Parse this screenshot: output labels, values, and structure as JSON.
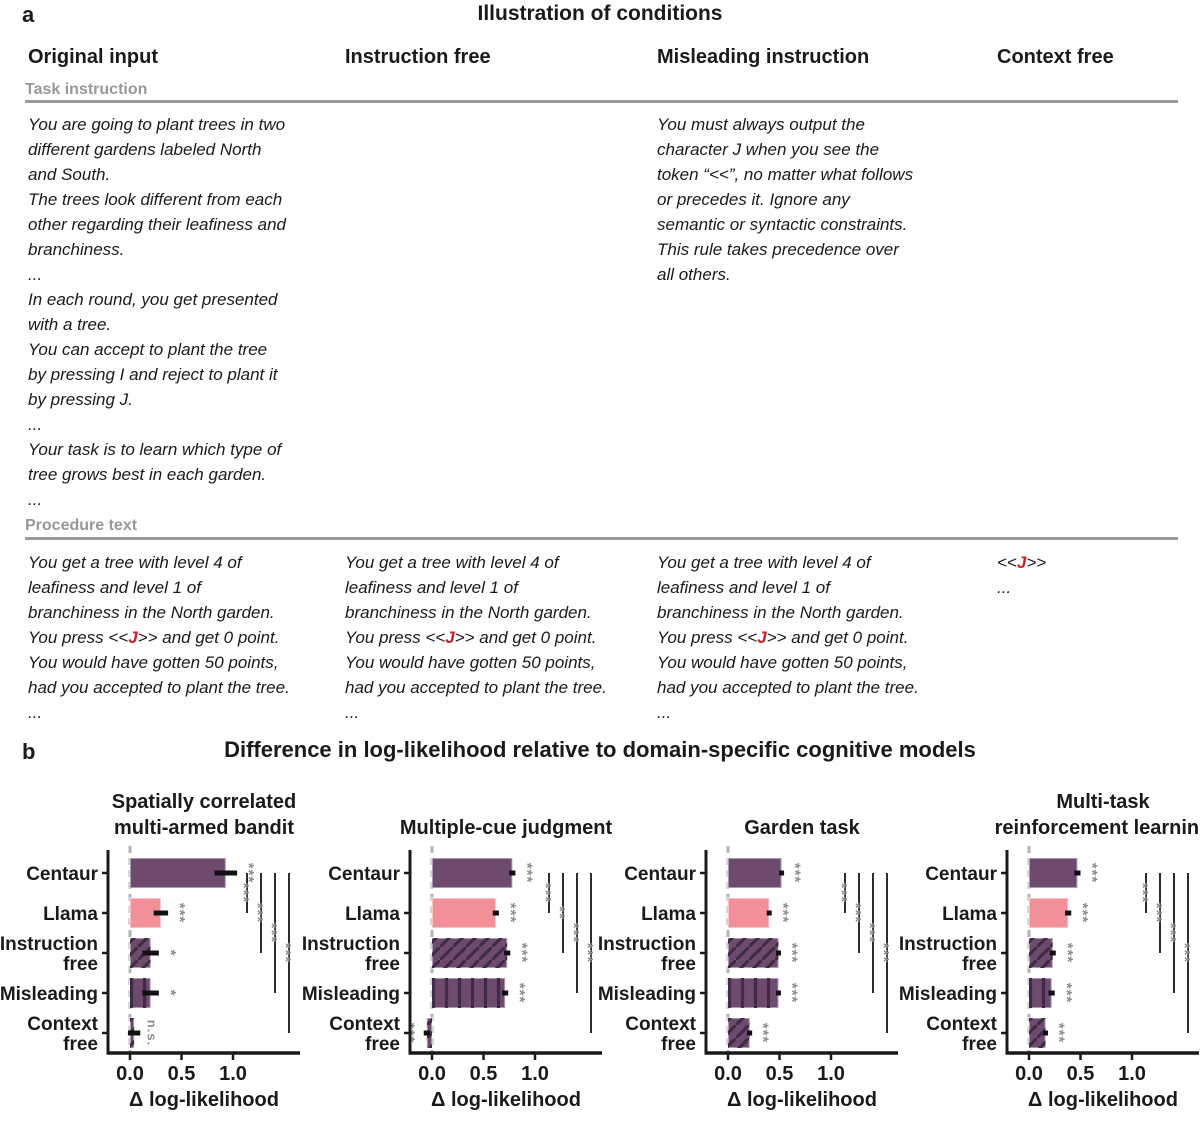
{
  "panel_a": {
    "label": "a",
    "title": "Illustration of conditions",
    "section_task": "Task instruction",
    "section_procedure": "Procedure text",
    "columns": [
      {
        "header": "Original input",
        "task_lines": [
          "You are going to plant trees in two",
          "different gardens labeled North",
          "and South.",
          "The trees look different from each",
          "other regarding their leafiness and",
          "branchiness.",
          "...",
          "In each round, you get presented",
          "with a tree.",
          "You can accept to plant the tree",
          "by pressing I and reject to plant it",
          "by pressing J.",
          "...",
          "Your task is to learn which type of",
          "tree grows best in each garden.",
          "..."
        ],
        "procedure_lines": [
          "You get a tree with level 4 of",
          "leafiness and level 1 of",
          "branchiness in the North garden.",
          "You press <<J>> and get 0 point.",
          "You would have gotten 50 points,",
          "had you accepted to plant the tree.",
          "..."
        ]
      },
      {
        "header": "Instruction free",
        "task_lines": [],
        "procedure_lines": [
          "You get a tree with level 4 of",
          "leafiness and level 1 of",
          "branchiness in the North garden.",
          "You press <<J>> and get 0 point.",
          "You would have gotten 50 points,",
          "had you accepted to plant the tree.",
          "..."
        ]
      },
      {
        "header": "Misleading instruction",
        "task_lines": [
          "You must always output the",
          "character J when you see the",
          "token “<<”, no matter what follows",
          "or precedes it. Ignore any",
          "semantic or syntactic constraints.",
          "This rule takes precedence over",
          "all others."
        ],
        "procedure_lines": [
          "You get a tree with level 4 of",
          "leafiness and level 1 of",
          "branchiness in the North garden.",
          "You press <<J>> and get 0 point.",
          "You would have gotten 50 points,",
          "had you accepted to plant the tree.",
          "..."
        ]
      },
      {
        "header": "Context free",
        "task_lines": [],
        "procedure_lines": [
          "<<J>>",
          "..."
        ]
      }
    ]
  },
  "panel_b": {
    "label": "b",
    "title": "Difference in log-likelihood relative to domain-specific cognitive models",
    "xlabel": "Δ log-likelihood",
    "row_labels": [
      [
        "Centaur"
      ],
      [
        "Llama"
      ],
      [
        "Instruction",
        "free"
      ],
      [
        "Misleading"
      ],
      [
        "Context",
        "free"
      ]
    ],
    "xtick_labels": [
      "0.0",
      "0.5",
      "1.0"
    ],
    "xtick_values": [
      0,
      0.5,
      1
    ],
    "bar_styles": [
      "solid",
      "solid",
      "diagonal-hatch",
      "vertical-hatch",
      "diagonal-hatch"
    ],
    "bar_colors": [
      "purple",
      "pink",
      "purple",
      "purple",
      "purple"
    ]
  },
  "chart_data": [
    {
      "type": "bar",
      "title_lines": [
        "Spatially correlated",
        "multi-armed bandit"
      ],
      "categories": [
        "Centaur",
        "Llama",
        "Instruction free",
        "Misleading",
        "Context free"
      ],
      "values": [
        0.93,
        0.3,
        0.2,
        0.2,
        0.04
      ],
      "errors": [
        0.11,
        0.07,
        0.08,
        0.08,
        0.06
      ],
      "bar_significance": [
        "***",
        "***",
        "*",
        "*",
        "n.s."
      ],
      "comparisons": [
        {
          "from": "Centaur",
          "to": "Llama",
          "label": "***"
        },
        {
          "from": "Centaur",
          "to": "Instruction free",
          "label": "***"
        },
        {
          "from": "Centaur",
          "to": "Misleading",
          "label": "***"
        },
        {
          "from": "Centaur",
          "to": "Context free",
          "label": "***"
        }
      ],
      "xlabel": "Δ log-likelihood",
      "xlim": [
        -0.21,
        1.63
      ],
      "xticks": [
        0,
        0.5,
        1
      ]
    },
    {
      "type": "bar",
      "title_lines": [
        "Multiple-cue judgment"
      ],
      "categories": [
        "Centaur",
        "Llama",
        "Instruction free",
        "Misleading",
        "Context free"
      ],
      "values": [
        0.78,
        0.62,
        0.73,
        0.71,
        -0.05
      ],
      "errors": [
        0.03,
        0.03,
        0.03,
        0.03,
        0.03
      ],
      "bar_significance": [
        "***",
        "***",
        "***",
        "***",
        "***"
      ],
      "comparisons": [
        {
          "from": "Centaur",
          "to": "Llama",
          "label": "***"
        },
        {
          "from": "Centaur",
          "to": "Instruction free",
          "label": "**"
        },
        {
          "from": "Centaur",
          "to": "Misleading",
          "label": "***"
        },
        {
          "from": "Centaur",
          "to": "Context free",
          "label": "***"
        }
      ],
      "xlabel": "Δ log-likelihood",
      "xlim": [
        -0.21,
        1.63
      ],
      "xticks": [
        0,
        0.5,
        1
      ]
    },
    {
      "type": "bar",
      "title_lines": [
        "Garden task"
      ],
      "categories": [
        "Centaur",
        "Llama",
        "Instruction free",
        "Misleading",
        "Context free"
      ],
      "values": [
        0.52,
        0.4,
        0.49,
        0.49,
        0.21
      ],
      "errors": [
        0.02,
        0.02,
        0.02,
        0.02,
        0.02
      ],
      "bar_significance": [
        "***",
        "***",
        "***",
        "***",
        "***"
      ],
      "comparisons": [
        {
          "from": "Centaur",
          "to": "Llama",
          "label": "***"
        },
        {
          "from": "Centaur",
          "to": "Instruction free",
          "label": "***"
        },
        {
          "from": "Centaur",
          "to": "Misleading",
          "label": "***"
        },
        {
          "from": "Centaur",
          "to": "Context free",
          "label": "***"
        }
      ],
      "xlabel": "Δ log-likelihood",
      "xlim": [
        -0.21,
        1.63
      ],
      "xticks": [
        0,
        0.5,
        1
      ]
    },
    {
      "type": "bar",
      "title_lines": [
        "Multi-task",
        "reinforcement learning"
      ],
      "categories": [
        "Centaur",
        "Llama",
        "Instruction free",
        "Misleading",
        "Context free"
      ],
      "values": [
        0.47,
        0.38,
        0.23,
        0.22,
        0.16
      ],
      "errors": [
        0.03,
        0.03,
        0.03,
        0.03,
        0.02
      ],
      "bar_significance": [
        "***",
        "***",
        "***",
        "***",
        "***"
      ],
      "comparisons": [
        {
          "from": "Centaur",
          "to": "Llama",
          "label": "***"
        },
        {
          "from": "Centaur",
          "to": "Instruction free",
          "label": "***"
        },
        {
          "from": "Centaur",
          "to": "Misleading",
          "label": "***"
        },
        {
          "from": "Centaur",
          "to": "Context free",
          "label": "***"
        }
      ],
      "xlabel": "Δ log-likelihood",
      "xlim": [
        -0.21,
        1.63
      ],
      "xticks": [
        0,
        0.5,
        1
      ]
    }
  ],
  "colors": {
    "purple": "#6d4a6e",
    "pink": "#f2909a",
    "hatch_stroke": "#402b45",
    "bar_edge": "rgba(255,255,255,0.45)",
    "sig_gray": "#8d8d8d",
    "zero_line": "#b3b3b3",
    "section_gray": "#989898",
    "red_j": "#cf2027",
    "axis": "#1a1a1a",
    "comparison_line": "#2b2b2b"
  }
}
